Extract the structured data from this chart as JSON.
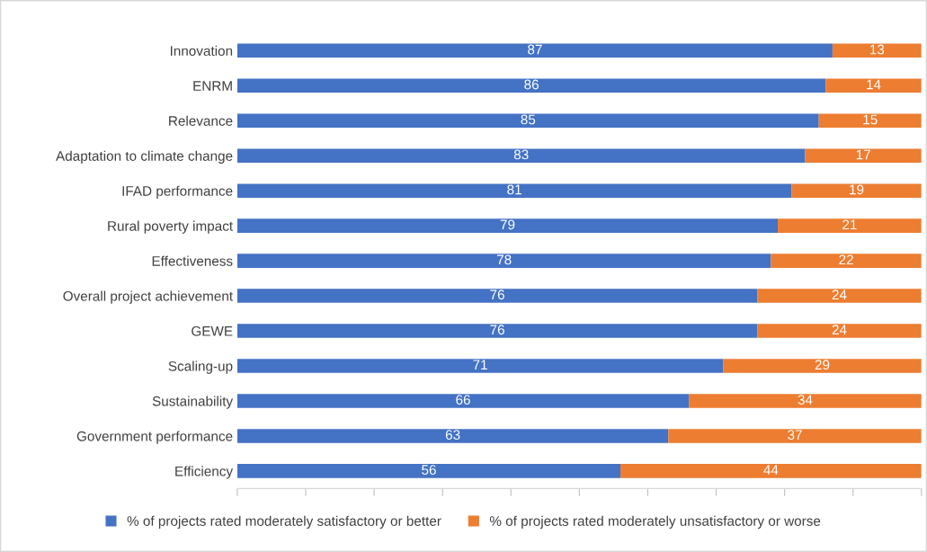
{
  "chart_data": {
    "type": "bar",
    "orientation": "horizontal",
    "stacked": true,
    "data_labels": true,
    "legend": "bottom",
    "grid": false,
    "tick_labels": "y",
    "categories": [
      "Innovation",
      "ENRM",
      "Relevance",
      "Adaptation to climate change",
      "IFAD performance",
      "Rural poverty impact",
      "Effectiveness",
      "Overall project achievement",
      "GEWE",
      "Scaling-up",
      "Sustainability",
      "Government performance",
      "Efficiency"
    ],
    "xlim": [
      0,
      100
    ],
    "xticks": [
      {
        "value": 0,
        "label": null
      },
      {
        "value": 10,
        "label": null
      },
      {
        "value": 20,
        "label": null
      },
      {
        "value": 30,
        "label": null
      },
      {
        "value": 40,
        "label": null
      },
      {
        "value": 50,
        "label": null
      },
      {
        "value": 60,
        "label": null
      },
      {
        "value": 70,
        "label": null
      },
      {
        "value": 80,
        "label": null
      },
      {
        "value": 90,
        "label": null
      },
      {
        "value": 100,
        "label": null
      }
    ],
    "series": [
      {
        "name": "% of projects rated moderately satisfactory or better",
        "color": "#4472c4",
        "values": [
          87,
          86,
          85,
          83,
          81,
          79,
          78,
          76,
          76,
          71,
          66,
          63,
          56
        ]
      },
      {
        "name": "% of projects rated moderately unsatisfactory or worse",
        "color": "#ed7d31",
        "values": [
          13,
          14,
          15,
          17,
          19,
          21,
          22,
          24,
          24,
          29,
          34,
          37,
          44
        ]
      }
    ]
  }
}
